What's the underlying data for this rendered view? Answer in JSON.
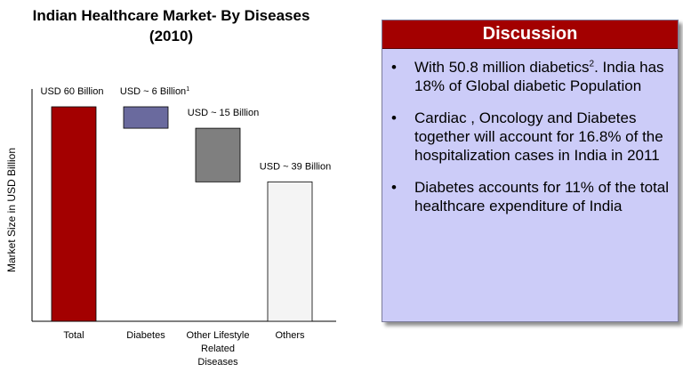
{
  "chart_data": {
    "type": "bar",
    "subtype": "waterfall",
    "title_line1": "Indian Healthcare Market- By Diseases",
    "title_line2": "(2010)",
    "ylabel": "Market Size in USD Billion",
    "ylim": [
      0,
      60
    ],
    "categories": [
      [
        "Total"
      ],
      [
        "Diabetes"
      ],
      [
        "Other Lifestyle",
        "Related",
        "Diseases"
      ],
      [
        "Others"
      ]
    ],
    "bars": [
      {
        "category": "Total",
        "start": 0,
        "end": 60,
        "label": "USD 60 Billion",
        "label_sup": "",
        "color": "#a30000"
      },
      {
        "category": "Diabetes",
        "start": 54,
        "end": 60,
        "label": "USD ~ 6  Billion",
        "label_sup": "1",
        "color": "#6a6a9e"
      },
      {
        "category": "Other Lifestyle Related Diseases",
        "start": 39,
        "end": 54,
        "label": "USD ~ 15 Billion",
        "label_sup": "",
        "color": "#7f7f7f"
      },
      {
        "category": "Others",
        "start": 0,
        "end": 39,
        "label": "USD ~ 39 Billion",
        "label_sup": "",
        "color": "#f4f4f4"
      }
    ]
  },
  "discussion": {
    "header": "Discussion",
    "bullet_symbol": "•",
    "items": [
      {
        "pre": "With 50.8 million diabetics",
        "sup": "2",
        "post": ". India has 18% of Global diabetic Population"
      },
      {
        "pre": "Cardiac , Oncology and Diabetes together will account for 16.8% of the hospitalization cases in India in 2011",
        "sup": "",
        "post": ""
      },
      {
        "pre": "Diabetes accounts for 11% of the total healthcare expenditure of India",
        "sup": "",
        "post": ""
      }
    ]
  }
}
